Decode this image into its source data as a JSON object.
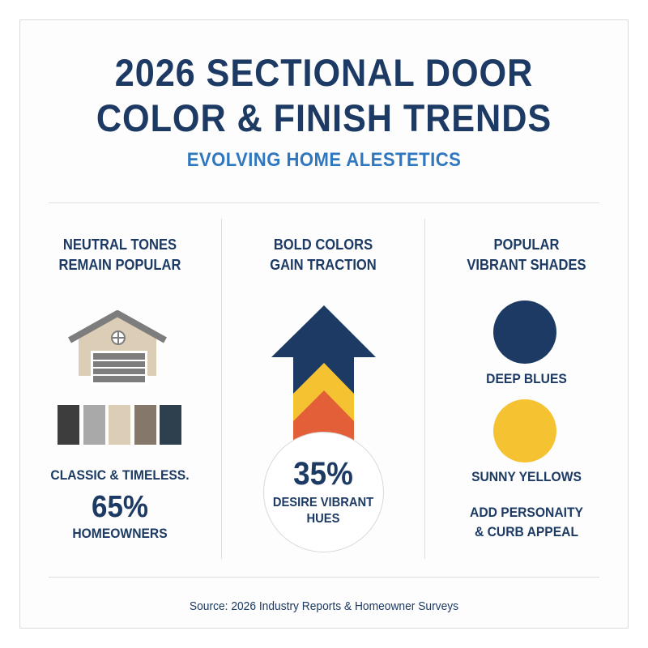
{
  "header": {
    "title_line1": "2026 SECTIONAL DOOR",
    "title_line2": "COLOR & FINISH TRENDS",
    "subtitle": "EVOLVING HOME ALESTETICS"
  },
  "columns": [
    {
      "heading_line1": "NEUTRAL TONES",
      "heading_line2": "REMAIN POPULAR",
      "icon": "house-garage-icon",
      "swatches": [
        "#3d3d3d",
        "#a9a9a9",
        "#dccdb6",
        "#85786b",
        "#2e3f4e"
      ],
      "caption": "CLASSIC & TIMELESS.",
      "stat": "65%",
      "stat_label": "HOMEOWNERS"
    },
    {
      "heading_line1": "BOLD COLORS",
      "heading_line2": "GAIN TRACTION",
      "icon": "up-arrow-icon",
      "arrow_colors": [
        "#1c3a63",
        "#f5c232",
        "#e35f38"
      ],
      "stat": "35%",
      "stat_label_line1": "DESIRE VIBRANT",
      "stat_label_line2": "HUES"
    },
    {
      "heading_line1": "POPULAR",
      "heading_line2": "VIBRANT SHADES",
      "shades": [
        {
          "label": "DEEP BLUES",
          "color": "#1c3a63"
        },
        {
          "label": "SUNNY YELLOWS",
          "color": "#f5c232"
        }
      ],
      "note_line1": "ADD PERSONAITY",
      "note_line2": "& CURB APPEAL"
    }
  ],
  "footer": {
    "source": "Source: 2026 Industry Reports & Homeowner Surveys"
  }
}
